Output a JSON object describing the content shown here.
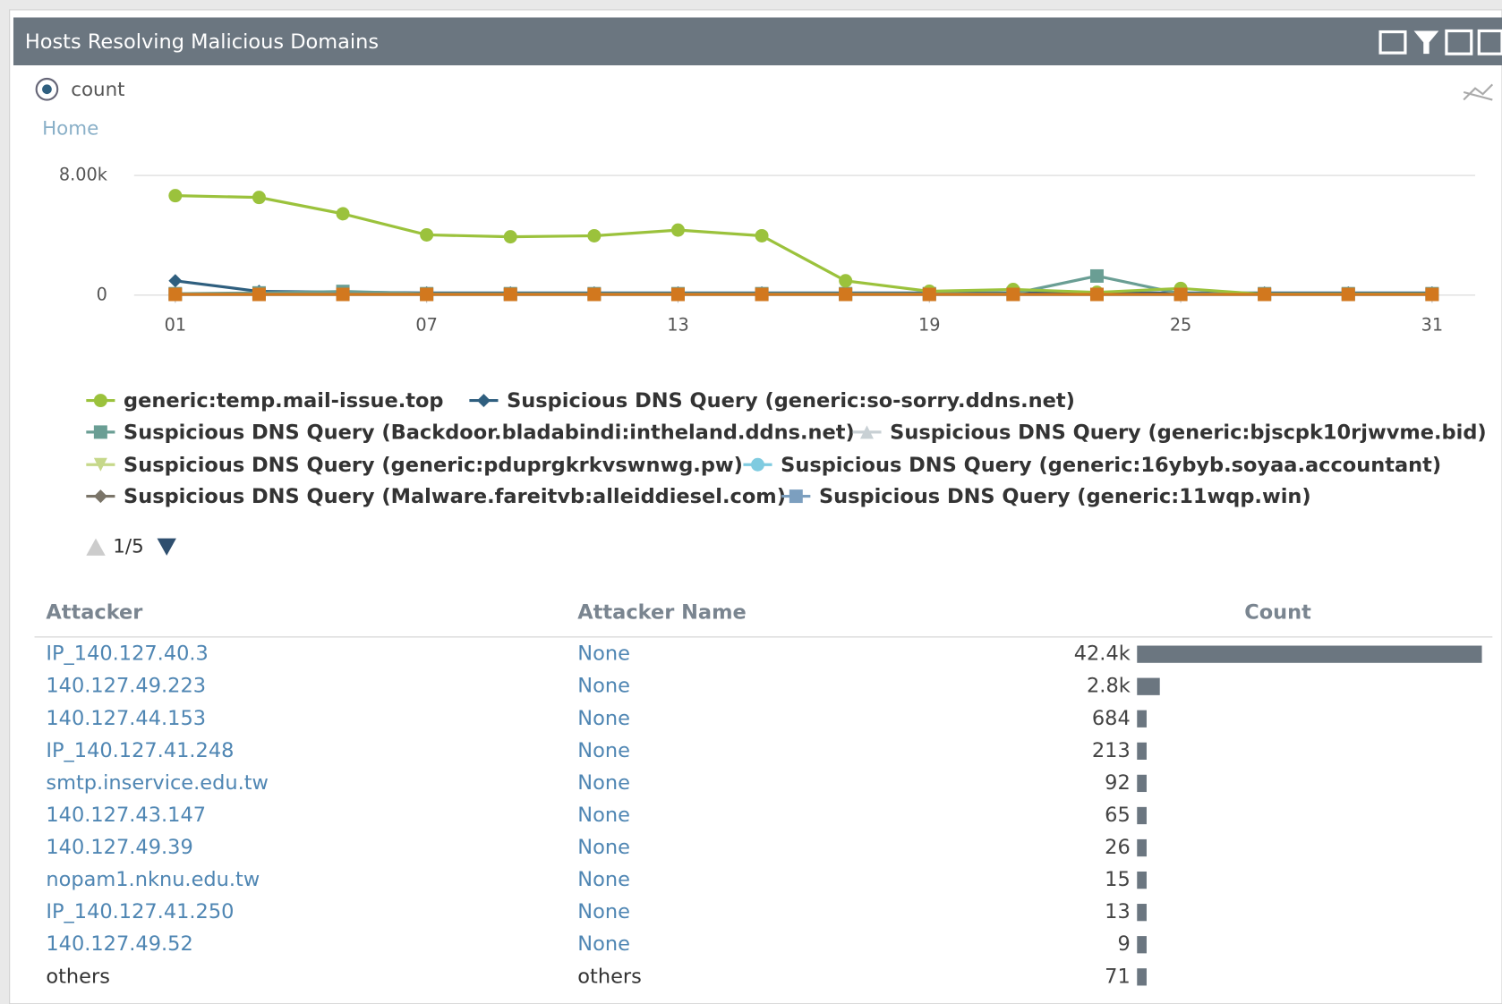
{
  "panel": {
    "title": "Hosts Resolving Malicious Domains",
    "radio_label": "count",
    "breadcrumb": "Home",
    "pager": "1/5"
  },
  "chart_data": {
    "type": "line",
    "x": [
      1,
      3,
      5,
      7,
      9,
      11,
      13,
      15,
      17,
      19,
      21,
      23,
      25,
      27,
      29,
      31
    ],
    "xlim": [
      1,
      31
    ],
    "xticks": [
      {
        "value": 1,
        "label": "01"
      },
      {
        "value": 7,
        "label": "07"
      },
      13,
      19,
      25,
      31
    ],
    "ylim": [
      0,
      8000
    ],
    "yticks": [
      0,
      {
        "value": 8000,
        "label": "8.00k"
      }
    ],
    "grid": true,
    "series": [
      {
        "name": "generic:temp.mail-issue.top",
        "color": "#9bc23c",
        "marker": "circle",
        "values": [
          6650,
          6530,
          5440,
          4030,
          3900,
          3970,
          4350,
          3970,
          960,
          260,
          380,
          190,
          450,
          60,
          60,
          60
        ]
      },
      {
        "name": "Suspicious DNS Query (generic:so-sorry.ddns.net)",
        "color": "#2f5f7f",
        "marker": "diamond",
        "values": [
          960,
          250,
          200,
          150,
          150,
          150,
          150,
          150,
          150,
          150,
          150,
          150,
          150,
          150,
          150,
          150
        ]
      },
      {
        "name": "Suspicious DNS Query (Backdoor.bladabindi:intheland.ddns.net)",
        "color": "#6a9e94",
        "marker": "square",
        "values": [
          100,
          150,
          250,
          100,
          100,
          100,
          100,
          100,
          100,
          100,
          100,
          1280,
          100,
          100,
          100,
          100
        ]
      },
      {
        "name": "Suspicious DNS Query (generic:bjscpk10rjwvme.bid)",
        "color": "#c8d0d4",
        "marker": "triangle",
        "values": [
          50,
          50,
          50,
          50,
          50,
          50,
          50,
          50,
          50,
          50,
          50,
          50,
          50,
          50,
          50,
          50
        ]
      },
      {
        "name": "Suspicious DNS Query (generic:pduprgkrkvswnwg.pw)",
        "color": "#c6d88a",
        "marker": "triangle-down",
        "values": [
          50,
          50,
          50,
          50,
          50,
          50,
          50,
          50,
          50,
          50,
          50,
          50,
          50,
          50,
          50,
          50
        ]
      },
      {
        "name": "Suspicious DNS Query (generic:16ybyb.soyaa.accountant)",
        "color": "#7fcbe0",
        "marker": "circle",
        "values": [
          50,
          50,
          50,
          50,
          50,
          50,
          50,
          50,
          50,
          50,
          50,
          50,
          50,
          50,
          50,
          50
        ]
      },
      {
        "name": "Suspicious DNS Query (Malware.fareitvb:alleiddiesel.com)",
        "color": "#7a7468",
        "marker": "diamond",
        "values": [
          50,
          50,
          50,
          50,
          50,
          50,
          50,
          50,
          50,
          50,
          50,
          50,
          50,
          50,
          50,
          50
        ]
      },
      {
        "name": "Suspicious DNS Query (generic:11wqp.win)",
        "color": "#7c9fbf",
        "marker": "square",
        "values": [
          50,
          50,
          50,
          50,
          50,
          50,
          50,
          50,
          50,
          50,
          50,
          50,
          50,
          50,
          50,
          50
        ]
      },
      {
        "color": "#d2781e",
        "marker": "square",
        "values": [
          50,
          50,
          50,
          50,
          50,
          50,
          50,
          50,
          50,
          50,
          50,
          50,
          50,
          50,
          50,
          50
        ]
      }
    ]
  },
  "table": {
    "columns": [
      "Attacker",
      "Attacker Name",
      "Count"
    ],
    "attackers": [
      "IP_140.127.40.3",
      "140.127.49.223",
      "140.127.44.153",
      "IP_140.127.41.248",
      "smtp.inservice.edu.tw",
      "140.127.43.147",
      "140.127.49.39",
      "nopam1.nknu.edu.tw",
      "IP_140.127.41.250",
      "140.127.49.52",
      "others"
    ],
    "names": [
      "None",
      "None",
      "None",
      "None",
      "None",
      "None",
      "None",
      "None",
      "None",
      "None",
      "others"
    ],
    "counts": [
      42400,
      2800,
      684,
      213,
      92,
      65,
      26,
      15,
      13,
      9,
      71
    ],
    "count_labels": [
      "42.4k",
      "2.8k",
      "684",
      "213",
      "92",
      "65",
      "26",
      "15",
      "13",
      "9",
      "71"
    ]
  }
}
